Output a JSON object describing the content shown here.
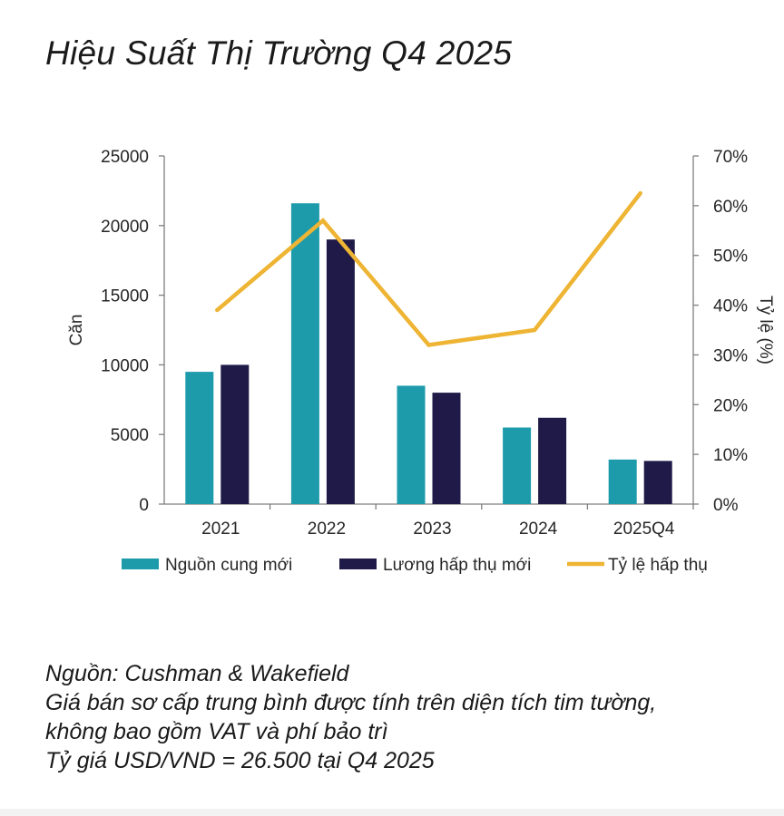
{
  "title": "Hiệu Suất Thị Trường Q4 2025",
  "chart_data": {
    "type": "bar",
    "categories": [
      "2021",
      "2022",
      "2023",
      "2024",
      "2025Q4"
    ],
    "series": [
      {
        "name": "Nguồn cung mới",
        "type": "bar",
        "axis": "left",
        "color": "#1e9bab",
        "values": [
          9500,
          21600,
          8500,
          5500,
          3200
        ]
      },
      {
        "name": "Lương hấp thụ mới",
        "type": "bar",
        "axis": "left",
        "color": "#1f1a47",
        "values": [
          10000,
          19000,
          8000,
          6200,
          3100
        ]
      },
      {
        "name": "Tỷ lệ hấp thụ",
        "type": "line",
        "axis": "right",
        "color": "#eeb433",
        "values": [
          39,
          57,
          32,
          35,
          62.5
        ]
      }
    ],
    "ylabel": "Căn",
    "y2label": "Tỷ lệ (%)",
    "ylim": [
      0,
      25000
    ],
    "y2lim": [
      0,
      70
    ],
    "yticks": [
      "0",
      "5000",
      "10000",
      "15000",
      "20000",
      "25000"
    ],
    "y2ticks": [
      "0%",
      "10%",
      "20%",
      "30%",
      "40%",
      "50%",
      "60%",
      "70%"
    ],
    "legend_position": "bottom",
    "grid": false
  },
  "footer": {
    "line1": "Nguồn: Cushman & Wakefield",
    "line2": "Giá bán sơ cấp trung bình được tính trên diện tích tim tường,",
    "line3": "không bao gồm VAT và phí bảo trì",
    "line4": "Tỷ giá USD/VND = 26.500 tại Q4 2025"
  }
}
